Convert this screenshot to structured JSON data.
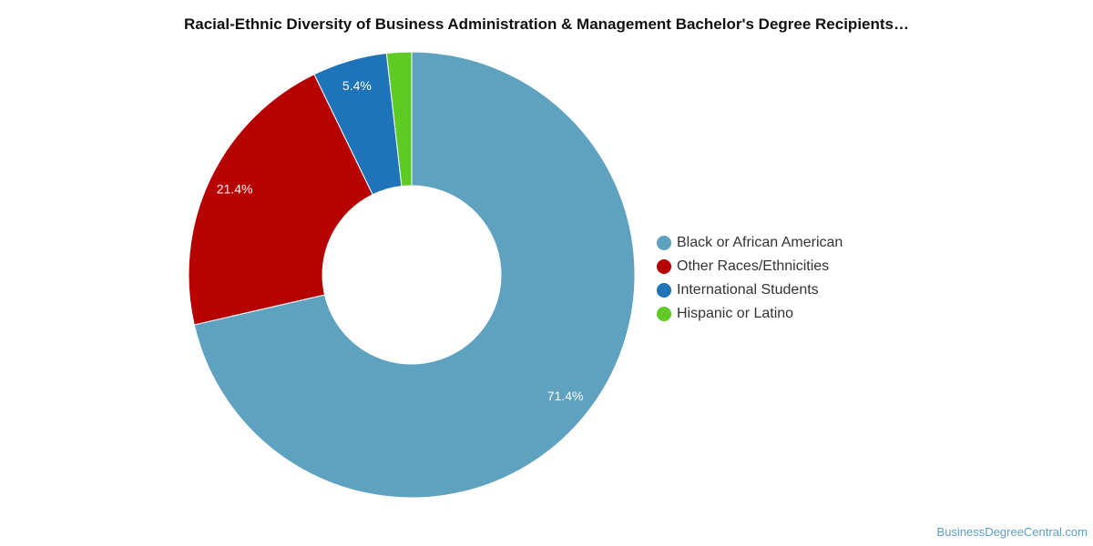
{
  "chart_data": {
    "type": "pie",
    "style": "donut",
    "title": "Racial-Ethnic Diversity of Business Administration & Management Bachelor's Degree Recipients…",
    "slices": [
      {
        "label": "Black or African American",
        "value": 71.4,
        "display": "71.4%",
        "color": "#5ea2bf"
      },
      {
        "label": "Other Races/Ethnicities",
        "value": 21.4,
        "display": "21.4%",
        "color": "#b70202"
      },
      {
        "label": "International Students",
        "value": 5.4,
        "display": "5.4%",
        "color": "#1f73b8"
      },
      {
        "label": "Hispanic or Latino",
        "value": 1.8,
        "display": "",
        "color": "#5dcb24"
      }
    ],
    "legend_position": "right"
  },
  "footer": {
    "credit": "BusinessDegreeCentral.com"
  }
}
